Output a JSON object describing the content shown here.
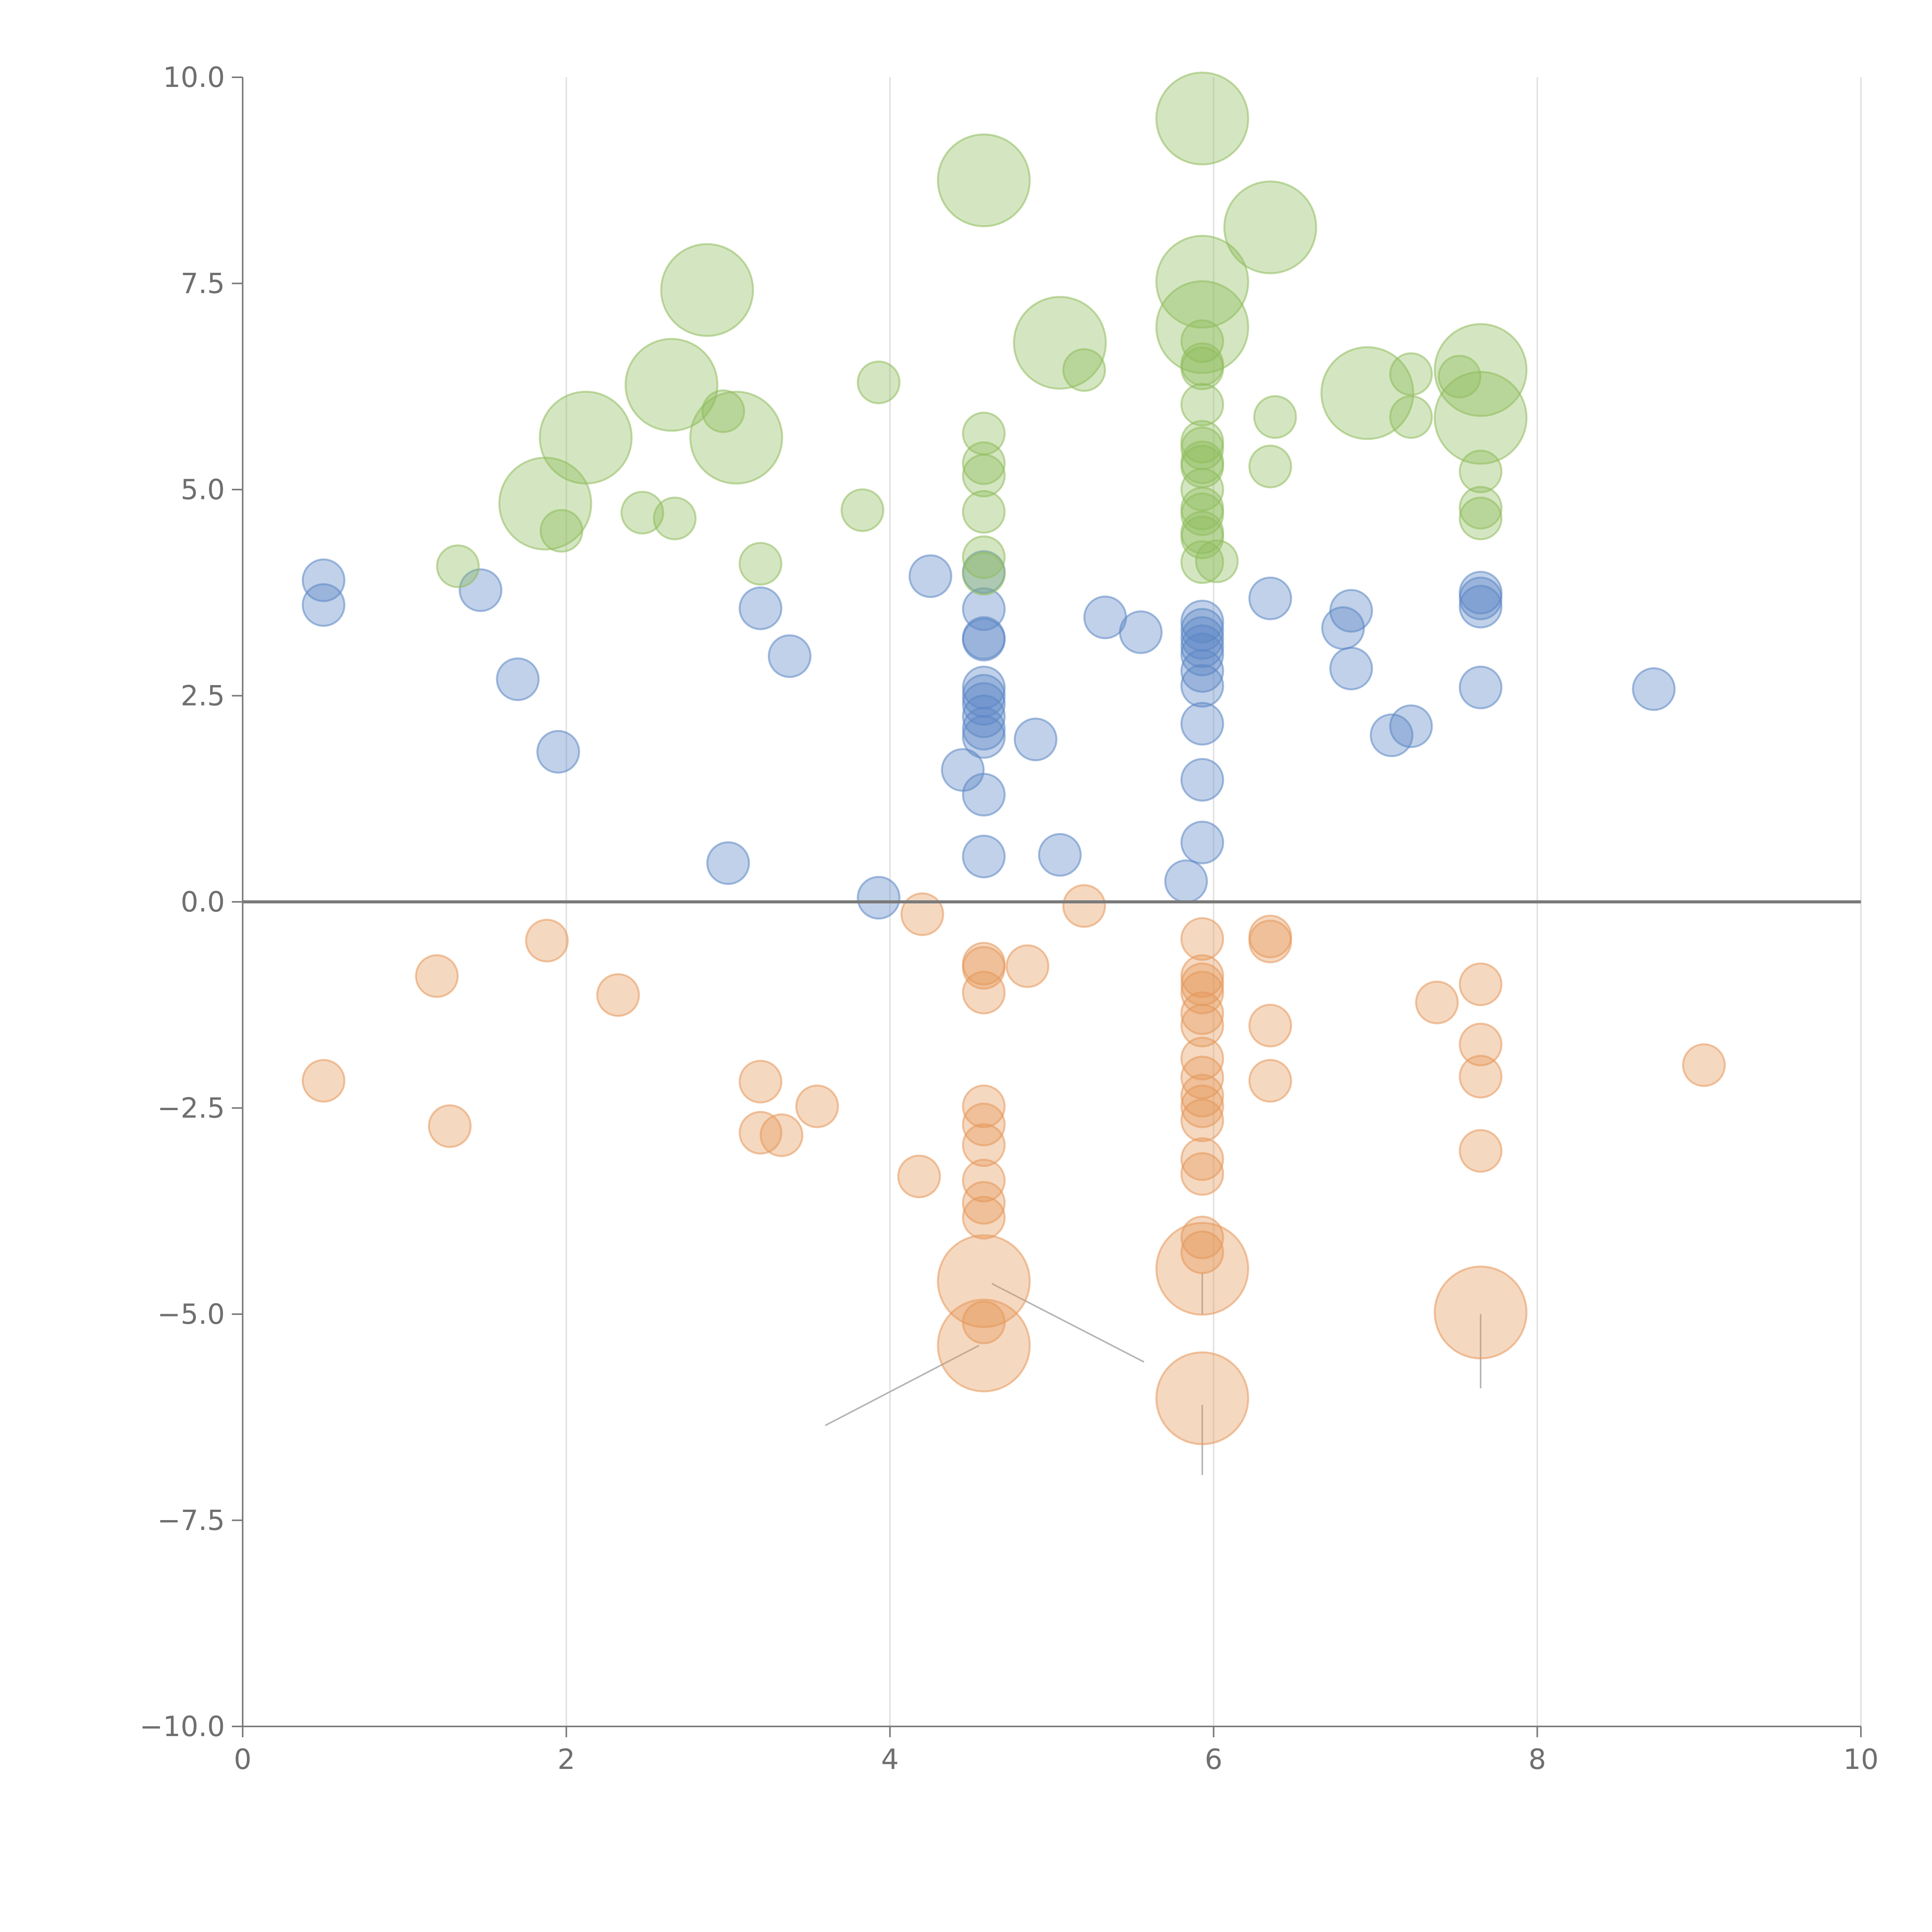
{
  "chart_data": {
    "type": "scatter",
    "title": "",
    "xlabel": "",
    "ylabel": "",
    "xlim": [
      0,
      10
    ],
    "ylim": [
      -10,
      10
    ],
    "grid": "vertical",
    "legend": "none",
    "x_ticks": [
      "0",
      "2",
      "4",
      "6",
      "8",
      "10"
    ],
    "y_ticks": [
      "10.0",
      "7.5",
      "5.0",
      "2.5",
      "0.0",
      "−2.5",
      "−5.0",
      "−7.5",
      "−10.0"
    ],
    "x_tick_values": [
      0,
      2,
      4,
      6,
      8,
      10
    ],
    "y_tick_values": [
      10,
      7.5,
      5,
      2.5,
      0,
      -2.5,
      -5,
      -7.5,
      -10
    ],
    "size_unit": "relative",
    "colors": {
      "blue": "#5b86c4",
      "green": "#8fbc5c",
      "orange": "#e5985a",
      "axis": "#7a7a7a",
      "grid": "#e2e2e2",
      "leader": "#b4b4b4"
    },
    "series": [
      {
        "name": "blue",
        "color": "#5b86c4",
        "points": [
          {
            "x": 0.5,
            "y": 3.9,
            "s": 1
          },
          {
            "x": 0.5,
            "y": 3.6,
            "s": 1
          },
          {
            "x": 1.47,
            "y": 3.78,
            "s": 1
          },
          {
            "x": 1.7,
            "y": 2.7,
            "s": 1
          },
          {
            "x": 1.95,
            "y": 1.82,
            "s": 1
          },
          {
            "x": 3.0,
            "y": 0.47,
            "s": 1
          },
          {
            "x": 3.2,
            "y": 3.56,
            "s": 1
          },
          {
            "x": 3.38,
            "y": 2.98,
            "s": 1
          },
          {
            "x": 3.93,
            "y": 0.05,
            "s": 1
          },
          {
            "x": 4.25,
            "y": 3.95,
            "s": 1
          },
          {
            "x": 4.45,
            "y": 1.6,
            "s": 1
          },
          {
            "x": 4.58,
            "y": 4.0,
            "s": 1
          },
          {
            "x": 4.58,
            "y": 3.55,
            "s": 1
          },
          {
            "x": 4.58,
            "y": 3.2,
            "s": 1
          },
          {
            "x": 4.58,
            "y": 3.18,
            "s": 1
          },
          {
            "x": 4.58,
            "y": 2.6,
            "s": 1
          },
          {
            "x": 4.58,
            "y": 2.5,
            "s": 1
          },
          {
            "x": 4.58,
            "y": 2.4,
            "s": 1
          },
          {
            "x": 4.58,
            "y": 2.25,
            "s": 1
          },
          {
            "x": 4.58,
            "y": 2.1,
            "s": 1
          },
          {
            "x": 4.58,
            "y": 2.0,
            "s": 1
          },
          {
            "x": 4.58,
            "y": 1.3,
            "s": 1
          },
          {
            "x": 4.58,
            "y": 0.55,
            "s": 1
          },
          {
            "x": 4.9,
            "y": 1.97,
            "s": 1
          },
          {
            "x": 5.05,
            "y": 0.57,
            "s": 1
          },
          {
            "x": 5.33,
            "y": 3.45,
            "s": 1
          },
          {
            "x": 5.55,
            "y": 3.27,
            "s": 1
          },
          {
            "x": 5.83,
            "y": 0.25,
            "s": 1
          },
          {
            "x": 5.93,
            "y": 3.4,
            "s": 1
          },
          {
            "x": 5.93,
            "y": 3.3,
            "s": 1
          },
          {
            "x": 5.93,
            "y": 3.2,
            "s": 1
          },
          {
            "x": 5.93,
            "y": 3.1,
            "s": 1
          },
          {
            "x": 5.93,
            "y": 3.0,
            "s": 1
          },
          {
            "x": 5.93,
            "y": 2.8,
            "s": 1
          },
          {
            "x": 5.93,
            "y": 2.62,
            "s": 1
          },
          {
            "x": 5.93,
            "y": 2.16,
            "s": 1
          },
          {
            "x": 5.93,
            "y": 1.48,
            "s": 1
          },
          {
            "x": 5.93,
            "y": 0.72,
            "s": 1
          },
          {
            "x": 6.35,
            "y": 3.68,
            "s": 1
          },
          {
            "x": 6.8,
            "y": 3.32,
            "s": 1
          },
          {
            "x": 6.85,
            "y": 3.53,
            "s": 1
          },
          {
            "x": 6.85,
            "y": 2.83,
            "s": 1
          },
          {
            "x": 7.1,
            "y": 2.02,
            "s": 1
          },
          {
            "x": 7.22,
            "y": 2.13,
            "s": 1
          },
          {
            "x": 7.65,
            "y": 3.75,
            "s": 1
          },
          {
            "x": 7.65,
            "y": 3.68,
            "s": 1
          },
          {
            "x": 7.65,
            "y": 3.58,
            "s": 1
          },
          {
            "x": 7.65,
            "y": 2.6,
            "s": 1
          },
          {
            "x": 8.72,
            "y": 2.58,
            "s": 1
          }
        ]
      },
      {
        "name": "green",
        "color": "#8fbc5c",
        "points": [
          {
            "x": 1.33,
            "y": 4.07,
            "s": 1
          },
          {
            "x": 1.87,
            "y": 4.83,
            "s": 2.2
          },
          {
            "x": 1.97,
            "y": 4.5,
            "s": 1
          },
          {
            "x": 2.12,
            "y": 5.63,
            "s": 2.2
          },
          {
            "x": 2.47,
            "y": 4.72,
            "s": 1
          },
          {
            "x": 2.65,
            "y": 6.27,
            "s": 2.2
          },
          {
            "x": 2.67,
            "y": 4.65,
            "s": 1
          },
          {
            "x": 2.87,
            "y": 7.42,
            "s": 2.2
          },
          {
            "x": 2.97,
            "y": 5.95,
            "s": 1
          },
          {
            "x": 3.05,
            "y": 5.63,
            "s": 2.2
          },
          {
            "x": 3.2,
            "y": 4.1,
            "s": 1
          },
          {
            "x": 3.83,
            "y": 4.75,
            "s": 1
          },
          {
            "x": 3.93,
            "y": 6.3,
            "s": 1
          },
          {
            "x": 4.58,
            "y": 8.75,
            "s": 2.2
          },
          {
            "x": 4.58,
            "y": 5.68,
            "s": 1
          },
          {
            "x": 4.58,
            "y": 5.32,
            "s": 1
          },
          {
            "x": 4.58,
            "y": 5.17,
            "s": 1
          },
          {
            "x": 4.58,
            "y": 4.73,
            "s": 1
          },
          {
            "x": 4.58,
            "y": 4.18,
            "s": 1
          },
          {
            "x": 4.58,
            "y": 3.98,
            "s": 1
          },
          {
            "x": 5.05,
            "y": 6.78,
            "s": 2.2
          },
          {
            "x": 5.2,
            "y": 6.45,
            "s": 1
          },
          {
            "x": 5.93,
            "y": 9.5,
            "s": 2.2
          },
          {
            "x": 5.93,
            "y": 7.52,
            "s": 2.2
          },
          {
            "x": 5.93,
            "y": 6.97,
            "s": 2.2
          },
          {
            "x": 5.93,
            "y": 6.8,
            "s": 1
          },
          {
            "x": 5.93,
            "y": 6.52,
            "s": 1
          },
          {
            "x": 5.93,
            "y": 6.47,
            "s": 1
          },
          {
            "x": 5.93,
            "y": 6.03,
            "s": 1
          },
          {
            "x": 5.93,
            "y": 5.58,
            "s": 1
          },
          {
            "x": 5.93,
            "y": 5.5,
            "s": 1
          },
          {
            "x": 5.93,
            "y": 5.33,
            "s": 1
          },
          {
            "x": 5.93,
            "y": 5.28,
            "s": 1
          },
          {
            "x": 5.93,
            "y": 5.0,
            "s": 1
          },
          {
            "x": 5.93,
            "y": 4.77,
            "s": 1
          },
          {
            "x": 5.93,
            "y": 4.7,
            "s": 1
          },
          {
            "x": 5.93,
            "y": 4.48,
            "s": 1
          },
          {
            "x": 5.93,
            "y": 4.42,
            "s": 1
          },
          {
            "x": 5.93,
            "y": 4.12,
            "s": 1
          },
          {
            "x": 6.02,
            "y": 4.13,
            "s": 1
          },
          {
            "x": 6.35,
            "y": 8.18,
            "s": 2.2
          },
          {
            "x": 6.35,
            "y": 5.28,
            "s": 1
          },
          {
            "x": 6.38,
            "y": 5.88,
            "s": 1
          },
          {
            "x": 6.95,
            "y": 6.17,
            "s": 2.2
          },
          {
            "x": 7.22,
            "y": 6.4,
            "s": 1
          },
          {
            "x": 7.22,
            "y": 5.88,
            "s": 1
          },
          {
            "x": 7.52,
            "y": 6.37,
            "s": 1
          },
          {
            "x": 7.65,
            "y": 6.45,
            "s": 2.2
          },
          {
            "x": 7.65,
            "y": 5.87,
            "s": 2.2
          },
          {
            "x": 7.65,
            "y": 5.22,
            "s": 1
          },
          {
            "x": 7.65,
            "y": 4.78,
            "s": 1
          },
          {
            "x": 7.65,
            "y": 4.65,
            "s": 1
          }
        ]
      },
      {
        "name": "orange",
        "color": "#e5985a",
        "points": [
          {
            "x": 0.5,
            "y": -2.17,
            "s": 1
          },
          {
            "x": 1.2,
            "y": -0.9,
            "s": 1
          },
          {
            "x": 1.28,
            "y": -2.72,
            "s": 1
          },
          {
            "x": 1.88,
            "y": -0.47,
            "s": 1
          },
          {
            "x": 2.32,
            "y": -1.13,
            "s": 1
          },
          {
            "x": 3.2,
            "y": -2.18,
            "s": 1
          },
          {
            "x": 3.2,
            "y": -2.8,
            "s": 1
          },
          {
            "x": 3.33,
            "y": -2.83,
            "s": 1
          },
          {
            "x": 3.55,
            "y": -2.48,
            "s": 1
          },
          {
            "x": 4.18,
            "y": -3.33,
            "s": 1
          },
          {
            "x": 4.2,
            "y": -0.15,
            "s": 1
          },
          {
            "x": 4.58,
            "y": -0.75,
            "s": 1
          },
          {
            "x": 4.58,
            "y": -0.8,
            "s": 1
          },
          {
            "x": 4.58,
            "y": -1.1,
            "s": 1
          },
          {
            "x": 4.58,
            "y": -2.48,
            "s": 1
          },
          {
            "x": 4.58,
            "y": -2.7,
            "s": 1
          },
          {
            "x": 4.58,
            "y": -2.95,
            "s": 1
          },
          {
            "x": 4.58,
            "y": -3.38,
            "s": 1
          },
          {
            "x": 4.58,
            "y": -3.65,
            "s": 1
          },
          {
            "x": 4.58,
            "y": -3.83,
            "s": 1
          },
          {
            "x": 4.58,
            "y": -4.6,
            "s": 2.2
          },
          {
            "x": 4.58,
            "y": -5.1,
            "s": 1
          },
          {
            "x": 4.58,
            "y": -5.38,
            "s": 2.2
          },
          {
            "x": 4.85,
            "y": -0.78,
            "s": 1
          },
          {
            "x": 5.2,
            "y": -0.05,
            "s": 1
          },
          {
            "x": 5.93,
            "y": -0.45,
            "s": 1
          },
          {
            "x": 5.93,
            "y": -0.9,
            "s": 1
          },
          {
            "x": 5.93,
            "y": -1.0,
            "s": 1
          },
          {
            "x": 5.93,
            "y": -1.1,
            "s": 1
          },
          {
            "x": 5.93,
            "y": -1.35,
            "s": 1
          },
          {
            "x": 5.93,
            "y": -1.5,
            "s": 1
          },
          {
            "x": 5.93,
            "y": -1.9,
            "s": 1
          },
          {
            "x": 5.93,
            "y": -2.13,
            "s": 1
          },
          {
            "x": 5.93,
            "y": -2.35,
            "s": 1
          },
          {
            "x": 5.93,
            "y": -2.48,
            "s": 1
          },
          {
            "x": 5.93,
            "y": -2.65,
            "s": 1
          },
          {
            "x": 5.93,
            "y": -3.12,
            "s": 1
          },
          {
            "x": 5.93,
            "y": -3.3,
            "s": 1
          },
          {
            "x": 5.93,
            "y": -4.07,
            "s": 1
          },
          {
            "x": 5.93,
            "y": -4.25,
            "s": 1
          },
          {
            "x": 5.93,
            "y": -4.45,
            "s": 2.2
          },
          {
            "x": 5.93,
            "y": -6.02,
            "s": 2.2
          },
          {
            "x": 6.35,
            "y": -0.42,
            "s": 1
          },
          {
            "x": 6.35,
            "y": -0.48,
            "s": 1
          },
          {
            "x": 6.35,
            "y": -1.5,
            "s": 1
          },
          {
            "x": 6.35,
            "y": -2.17,
            "s": 1
          },
          {
            "x": 7.38,
            "y": -1.22,
            "s": 1
          },
          {
            "x": 7.65,
            "y": -1.0,
            "s": 1
          },
          {
            "x": 7.65,
            "y": -1.73,
            "s": 1
          },
          {
            "x": 7.65,
            "y": -2.12,
            "s": 1
          },
          {
            "x": 7.65,
            "y": -3.02,
            "s": 1
          },
          {
            "x": 7.65,
            "y": -4.98,
            "s": 2.2
          },
          {
            "x": 9.03,
            "y": -1.98,
            "s": 1
          }
        ]
      }
    ],
    "leader_lines": [
      {
        "x1": 4.55,
        "y1": -5.38,
        "x2": 3.6,
        "y2": -6.35
      },
      {
        "x1": 4.63,
        "y1": -4.63,
        "x2": 5.57,
        "y2": -5.58
      },
      {
        "x1": 5.93,
        "y1": -4.5,
        "x2": 5.93,
        "y2": -5.0
      },
      {
        "x1": 5.93,
        "y1": -6.1,
        "x2": 5.93,
        "y2": -6.95
      },
      {
        "x1": 7.65,
        "y1": -5.0,
        "x2": 7.65,
        "y2": -5.9
      }
    ],
    "annotations": []
  }
}
